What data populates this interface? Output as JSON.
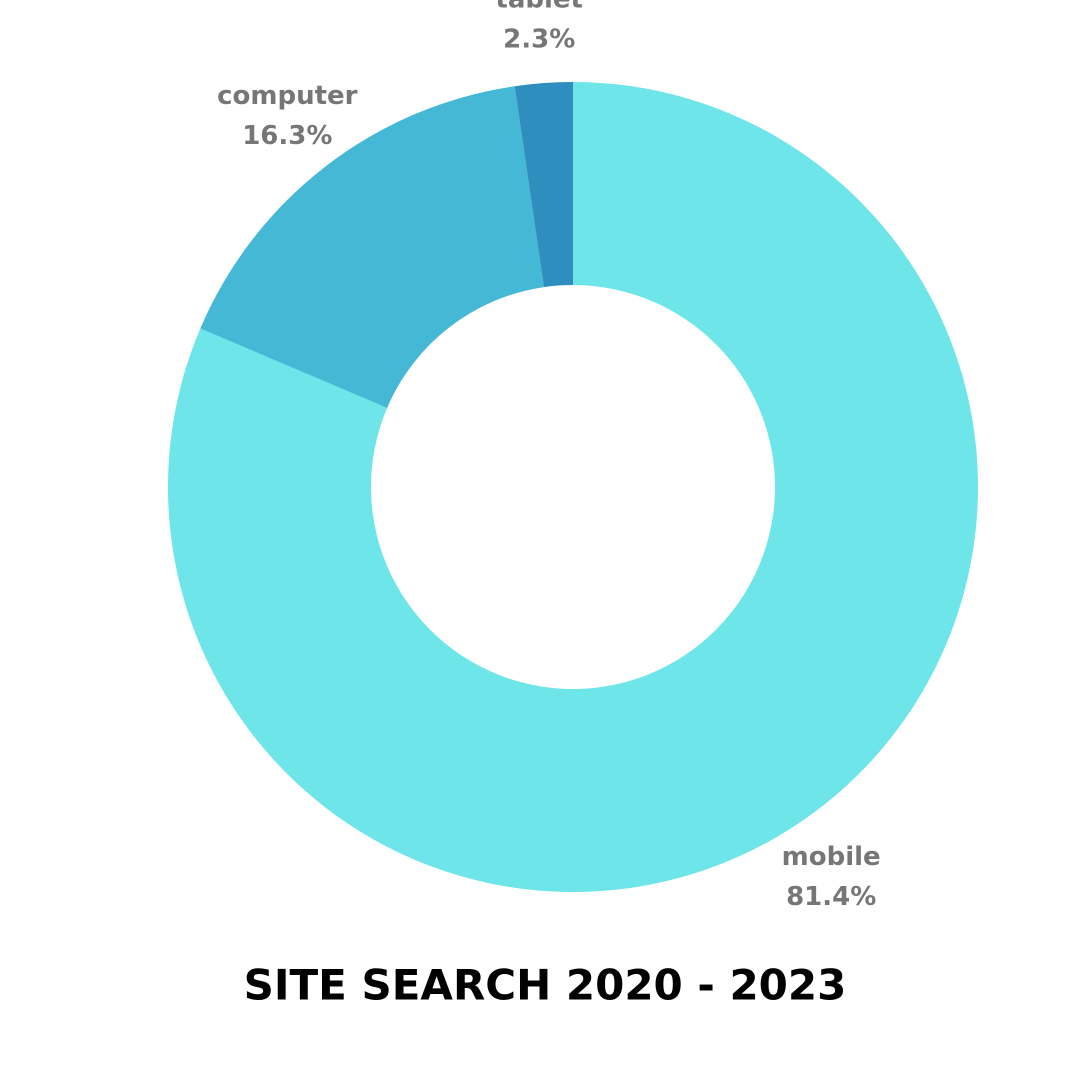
{
  "chart_data": {
    "type": "donut",
    "title": "SITE SEARCH 2020 - 2023",
    "categories": [
      "mobile",
      "computer",
      "tablet"
    ],
    "values": [
      81.4,
      16.3,
      2.3
    ],
    "value_labels": [
      "81.4%",
      "16.3%",
      "2.3%"
    ],
    "colors": [
      "#6ee5e9",
      "#45b8d6",
      "#2e8ebe"
    ]
  }
}
